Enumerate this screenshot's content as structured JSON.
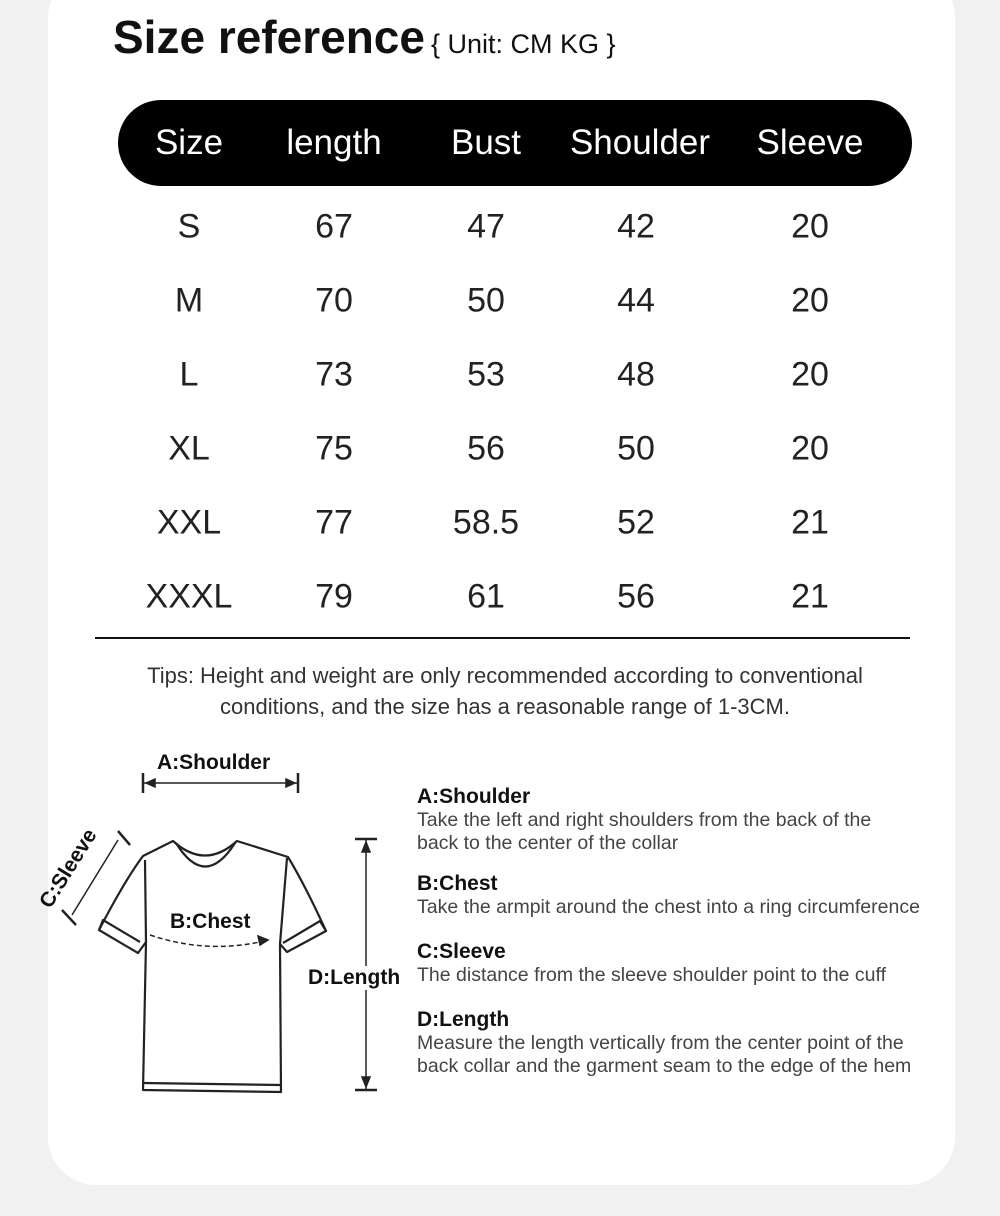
{
  "title": "Size reference",
  "unit_note": "{ Unit: CM KG }",
  "table": {
    "headers": [
      "Size",
      "length",
      "Bust",
      "Shoulder",
      "Sleeve"
    ],
    "rows": [
      [
        "S",
        "67",
        "47",
        "42",
        "20"
      ],
      [
        "M",
        "70",
        "50",
        "44",
        "20"
      ],
      [
        "L",
        "73",
        "53",
        "48",
        "20"
      ],
      [
        "XL",
        "75",
        "56",
        "50",
        "20"
      ],
      [
        "XXL",
        "77",
        "58.5",
        "52",
        "21"
      ],
      [
        "XXXL",
        "79",
        "61",
        "56",
        "21"
      ]
    ]
  },
  "tips": "Tips: Height and weight are only recommended according to conventional conditions, and the size has a reasonable range of 1-3CM.",
  "diagram": {
    "shoulder": "A:Shoulder",
    "sleeve": "C:Sleeve",
    "chest": "B:Chest",
    "length": "D:Length"
  },
  "descriptions": [
    {
      "label": "A:Shoulder",
      "text": "Take the left and right shoulders from the back of the back to the center of the collar"
    },
    {
      "label": "B:Chest",
      "text": "Take the armpit around the chest into a ring circumference"
    },
    {
      "label": "C:Sleeve",
      "text": "The distance from the sleeve shoulder point to the cuff"
    },
    {
      "label": "D:Length",
      "text": "Measure the length vertically from the center point of the back collar and the garment seam to the edge of the hem"
    }
  ]
}
